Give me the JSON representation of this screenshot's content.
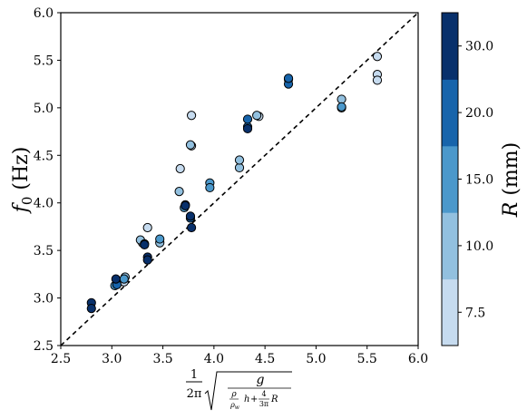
{
  "chart_data": {
    "type": "scatter",
    "xlabel": "1/(2π) √( g / ( (ρ/ρw) h + (4/(3π)) R ) )",
    "ylabel": "f0 (Hz)",
    "xlim": [
      2.5,
      6.0
    ],
    "ylim": [
      2.5,
      6.0
    ],
    "xticks": [
      "2.5",
      "3.0",
      "3.5",
      "4.0",
      "4.5",
      "5.0",
      "5.5",
      "6.0"
    ],
    "yticks": [
      "2.5",
      "3.0",
      "3.5",
      "4.0",
      "4.5",
      "5.0",
      "5.5",
      "6.0"
    ],
    "grid": false,
    "reference_line": {
      "style": "dashed",
      "from": [
        2.5,
        2.5
      ],
      "to": [
        6.0,
        6.0
      ]
    },
    "colorbar": {
      "label": "R (mm)",
      "ticks": [
        "7.5",
        "10.0",
        "15.0",
        "20.0",
        "30.0"
      ],
      "colors": [
        "#c6dbef",
        "#92c0df",
        "#4b98cb",
        "#1764ab",
        "#08306b"
      ]
    },
    "series": [
      {
        "r": "7.5",
        "color": "#c6dbef",
        "points": [
          [
            3.12,
            3.17
          ],
          [
            3.3,
            3.58
          ],
          [
            3.35,
            3.74
          ],
          [
            3.67,
            4.36
          ],
          [
            3.78,
            4.92
          ],
          [
            3.78,
            4.6
          ],
          [
            4.44,
            4.91
          ],
          [
            5.6,
            5.54
          ],
          [
            5.6,
            5.35
          ],
          [
            5.6,
            5.29
          ]
        ]
      },
      {
        "r": "10.0",
        "color": "#92c0df",
        "points": [
          [
            3.13,
            3.22
          ],
          [
            3.28,
            3.61
          ],
          [
            3.47,
            3.58
          ],
          [
            3.66,
            4.12
          ],
          [
            3.77,
            4.61
          ],
          [
            4.25,
            4.37
          ],
          [
            4.25,
            4.45
          ],
          [
            4.42,
            4.92
          ],
          [
            5.25,
            5.09
          ],
          [
            5.25,
            5.0
          ]
        ]
      },
      {
        "r": "15.0",
        "color": "#4b98cb",
        "points": [
          [
            3.03,
            3.13
          ],
          [
            3.12,
            3.2
          ],
          [
            3.47,
            3.62
          ],
          [
            3.71,
            3.95
          ],
          [
            3.96,
            4.21
          ],
          [
            3.96,
            4.16
          ],
          [
            4.73,
            5.3
          ],
          [
            5.25,
            5.01
          ]
        ]
      },
      {
        "r": "20.0",
        "color": "#1764ab",
        "points": [
          [
            3.05,
            3.14
          ],
          [
            3.32,
            3.57
          ],
          [
            3.72,
            3.98
          ],
          [
            3.77,
            3.84
          ],
          [
            4.33,
            4.8
          ],
          [
            4.33,
            4.88
          ],
          [
            4.73,
            5.25
          ],
          [
            4.73,
            5.31
          ]
        ]
      },
      {
        "r": "30.0",
        "color": "#08306b",
        "points": [
          [
            2.8,
            2.95
          ],
          [
            2.8,
            2.89
          ],
          [
            3.04,
            3.2
          ],
          [
            3.32,
            3.56
          ],
          [
            3.35,
            3.43
          ],
          [
            3.35,
            3.4
          ],
          [
            3.72,
            3.97
          ],
          [
            3.77,
            3.86
          ],
          [
            3.78,
            3.74
          ],
          [
            4.33,
            4.78
          ]
        ]
      }
    ]
  }
}
